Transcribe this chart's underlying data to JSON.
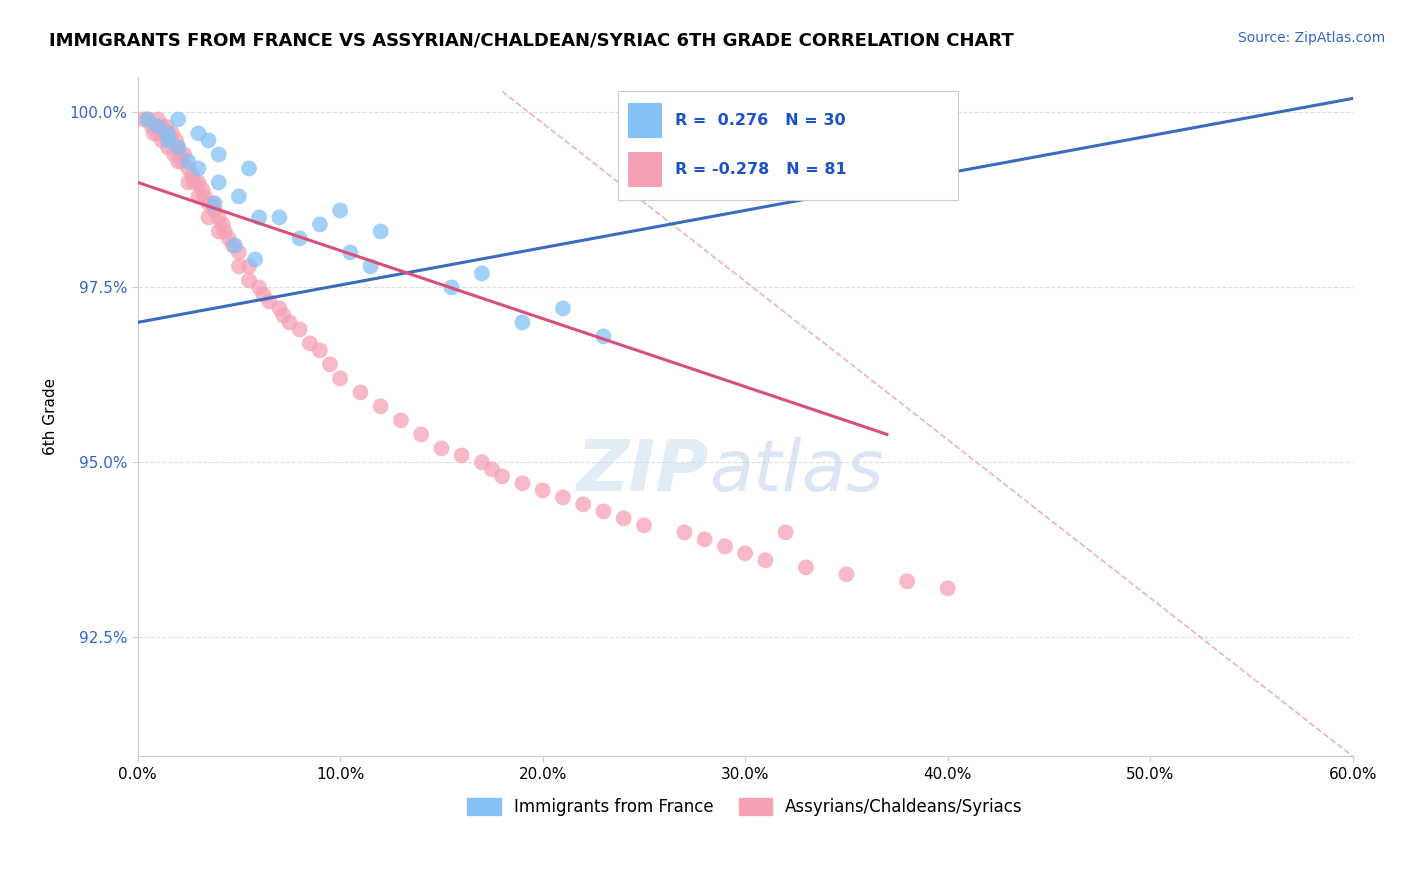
{
  "title": "IMMIGRANTS FROM FRANCE VS ASSYRIAN/CHALDEAN/SYRIAC 6TH GRADE CORRELATION CHART",
  "source_text": "Source: ZipAtlas.com",
  "xlabel": "",
  "ylabel": "6th Grade",
  "watermark_zip": "ZIP",
  "watermark_atlas": "atlas",
  "xmin": 0.0,
  "xmax": 0.6,
  "ymin": 0.908,
  "ymax": 1.005,
  "yticks": [
    0.925,
    0.95,
    0.975,
    1.0
  ],
  "ytick_labels": [
    "92.5%",
    "95.0%",
    "97.5%",
    "100.0%"
  ],
  "xticks": [
    0.0,
    0.1,
    0.2,
    0.3,
    0.4,
    0.5,
    0.6
  ],
  "xtick_labels": [
    "0.0%",
    "10.0%",
    "20.0%",
    "30.0%",
    "40.0%",
    "50.0%",
    "60.0%"
  ],
  "blue_R": 0.276,
  "blue_N": 30,
  "pink_R": -0.278,
  "pink_N": 81,
  "blue_color": "#85c1f5",
  "pink_color": "#f5a0b5",
  "blue_line_color": "#3a6bbf",
  "pink_line_color": "#d94f7a",
  "diag_line_color": "#e8b4b8",
  "legend_label_blue": "Immigrants from France",
  "legend_label_pink": "Assyrians/Chaldeans/Syriacs",
  "blue_line_x": [
    0.0,
    0.6
  ],
  "blue_line_y": [
    0.97,
    1.002
  ],
  "pink_line_x": [
    0.0,
    0.37
  ],
  "pink_line_y": [
    0.99,
    0.954
  ],
  "diag_line_x": [
    0.18,
    0.6
  ],
  "diag_line_y": [
    1.003,
    0.908
  ],
  "blue_points_x": [
    0.005,
    0.01,
    0.015,
    0.015,
    0.02,
    0.02,
    0.025,
    0.03,
    0.03,
    0.035,
    0.04,
    0.04,
    0.05,
    0.055,
    0.06,
    0.07,
    0.08,
    0.09,
    0.1,
    0.105,
    0.115,
    0.12,
    0.155,
    0.17,
    0.19,
    0.21,
    0.23,
    0.038,
    0.048,
    0.058
  ],
  "blue_points_y": [
    0.999,
    0.998,
    0.997,
    0.996,
    0.999,
    0.995,
    0.993,
    0.997,
    0.992,
    0.996,
    0.99,
    0.994,
    0.988,
    0.992,
    0.985,
    0.985,
    0.982,
    0.984,
    0.986,
    0.98,
    0.978,
    0.983,
    0.975,
    0.977,
    0.97,
    0.972,
    0.968,
    0.987,
    0.981,
    0.979
  ],
  "pink_points_x": [
    0.003,
    0.005,
    0.007,
    0.008,
    0.009,
    0.01,
    0.01,
    0.012,
    0.012,
    0.013,
    0.014,
    0.015,
    0.015,
    0.016,
    0.017,
    0.018,
    0.019,
    0.02,
    0.02,
    0.021,
    0.022,
    0.023,
    0.025,
    0.025,
    0.027,
    0.028,
    0.03,
    0.03,
    0.032,
    0.033,
    0.035,
    0.035,
    0.037,
    0.038,
    0.04,
    0.04,
    0.042,
    0.043,
    0.045,
    0.047,
    0.05,
    0.05,
    0.055,
    0.055,
    0.06,
    0.062,
    0.065,
    0.07,
    0.072,
    0.075,
    0.08,
    0.085,
    0.09,
    0.095,
    0.1,
    0.11,
    0.12,
    0.13,
    0.14,
    0.15,
    0.16,
    0.17,
    0.175,
    0.18,
    0.19,
    0.2,
    0.21,
    0.22,
    0.23,
    0.24,
    0.25,
    0.27,
    0.28,
    0.29,
    0.3,
    0.31,
    0.33,
    0.35,
    0.38,
    0.4,
    0.32
  ],
  "pink_points_y": [
    0.999,
    0.999,
    0.998,
    0.997,
    0.998,
    0.999,
    0.997,
    0.998,
    0.996,
    0.997,
    0.998,
    0.997,
    0.995,
    0.996,
    0.997,
    0.994,
    0.996,
    0.995,
    0.993,
    0.994,
    0.993,
    0.994,
    0.992,
    0.99,
    0.991,
    0.99,
    0.99,
    0.988,
    0.989,
    0.988,
    0.987,
    0.985,
    0.987,
    0.986,
    0.985,
    0.983,
    0.984,
    0.983,
    0.982,
    0.981,
    0.98,
    0.978,
    0.978,
    0.976,
    0.975,
    0.974,
    0.973,
    0.972,
    0.971,
    0.97,
    0.969,
    0.967,
    0.966,
    0.964,
    0.962,
    0.96,
    0.958,
    0.956,
    0.954,
    0.952,
    0.951,
    0.95,
    0.949,
    0.948,
    0.947,
    0.946,
    0.945,
    0.944,
    0.943,
    0.942,
    0.941,
    0.94,
    0.939,
    0.938,
    0.937,
    0.936,
    0.935,
    0.934,
    0.933,
    0.932,
    0.94
  ]
}
